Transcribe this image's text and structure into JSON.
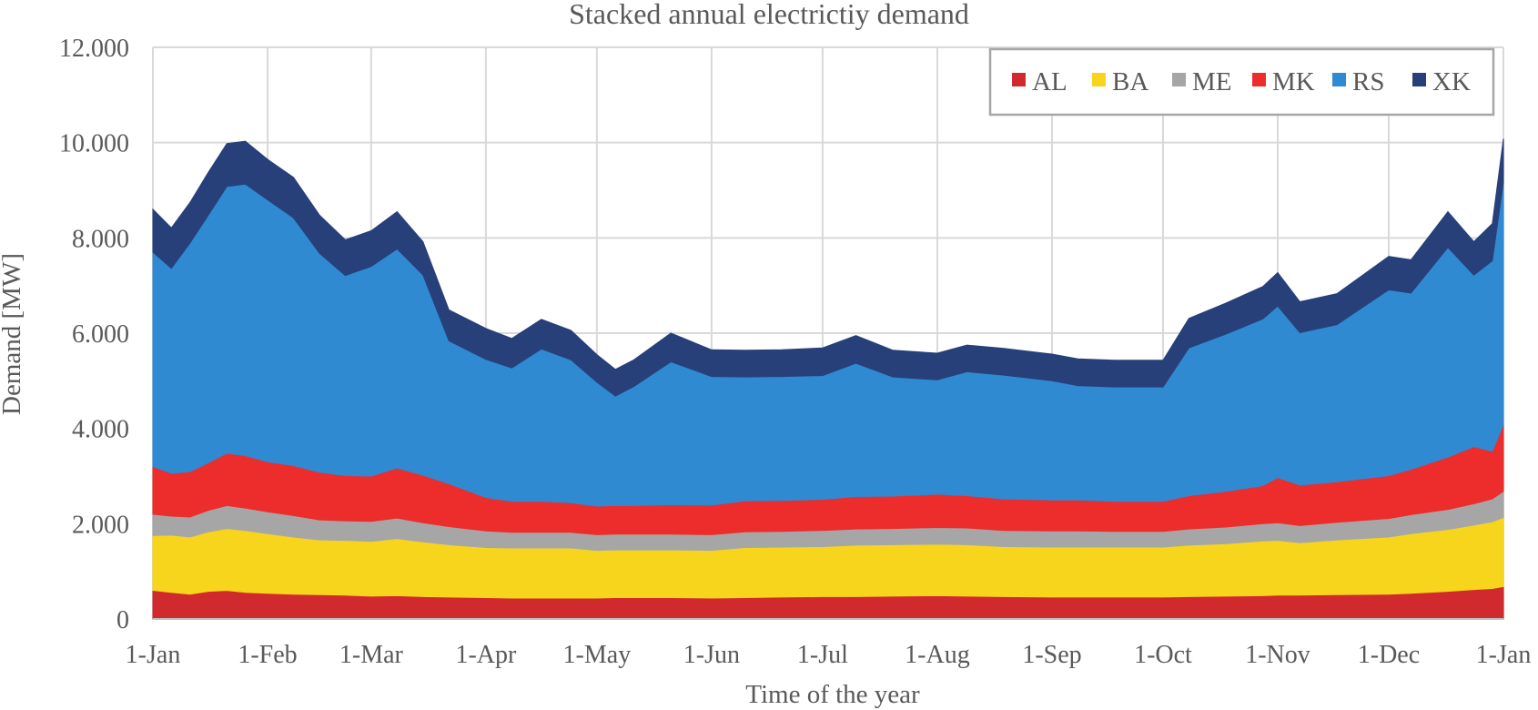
{
  "chart_data": {
    "type": "area",
    "stacked": true,
    "title": "Stacked annual electrictiy demand",
    "xlabel": "Time of the year",
    "ylabel": "Demand [MW]",
    "ylim": [
      0,
      12000
    ],
    "yticks": [
      "0",
      "2.000",
      "4.000",
      "6.000",
      "8.000",
      "10.000",
      "12.000"
    ],
    "xlim": [
      0,
      365
    ],
    "xticks": [
      {
        "label": "1-Jan",
        "day": 0
      },
      {
        "label": "1-Feb",
        "day": 31
      },
      {
        "label": "1-Mar",
        "day": 59
      },
      {
        "label": "1-Apr",
        "day": 90
      },
      {
        "label": "1-May",
        "day": 120
      },
      {
        "label": "1-Jun",
        "day": 151
      },
      {
        "label": "1-Jul",
        "day": 181
      },
      {
        "label": "1-Aug",
        "day": 212
      },
      {
        "label": "1-Sep",
        "day": 243
      },
      {
        "label": "1-Oct",
        "day": 273
      },
      {
        "label": "1-Nov",
        "day": 304
      },
      {
        "label": "1-Dec",
        "day": 334
      },
      {
        "label": "1-Jan",
        "day": 365
      }
    ],
    "grid": true,
    "legend_position": "top-right",
    "x": [
      0,
      5,
      10,
      15,
      20,
      25,
      31,
      38,
      45,
      52,
      59,
      66,
      73,
      80,
      90,
      97,
      105,
      113,
      120,
      125,
      130,
      140,
      151,
      160,
      170,
      181,
      190,
      200,
      212,
      220,
      230,
      243,
      250,
      260,
      273,
      280,
      290,
      300,
      304,
      310,
      320,
      334,
      340,
      350,
      357,
      362,
      365
    ],
    "series": [
      {
        "name": "AL",
        "color": "#d12a2e",
        "values": [
          600,
          560,
          520,
          580,
          600,
          560,
          540,
          520,
          510,
          500,
          480,
          490,
          470,
          460,
          450,
          440,
          440,
          440,
          440,
          450,
          450,
          450,
          440,
          450,
          460,
          470,
          470,
          480,
          490,
          480,
          470,
          460,
          460,
          460,
          460,
          470,
          480,
          490,
          500,
          500,
          510,
          520,
          540,
          580,
          620,
          640,
          680
        ]
      },
      {
        "name": "BA",
        "color": "#f7d51d",
        "values": [
          1150,
          1200,
          1200,
          1250,
          1300,
          1300,
          1250,
          1200,
          1150,
          1150,
          1150,
          1200,
          1150,
          1100,
          1050,
          1050,
          1050,
          1050,
          1000,
          1000,
          1000,
          1000,
          1000,
          1050,
          1050,
          1050,
          1080,
          1080,
          1080,
          1080,
          1050,
          1050,
          1050,
          1050,
          1050,
          1080,
          1100,
          1150,
          1150,
          1100,
          1150,
          1200,
          1250,
          1300,
          1350,
          1400,
          1450
        ]
      },
      {
        "name": "ME",
        "color": "#a6a6a6",
        "values": [
          450,
          400,
          420,
          450,
          480,
          470,
          460,
          450,
          420,
          410,
          420,
          430,
          400,
          380,
          350,
          330,
          330,
          330,
          330,
          330,
          330,
          330,
          330,
          330,
          330,
          340,
          340,
          340,
          350,
          350,
          340,
          340,
          340,
          330,
          330,
          340,
          350,
          360,
          370,
          360,
          370,
          390,
          400,
          420,
          450,
          480,
          550
        ]
      },
      {
        "name": "MK",
        "color": "#ed2c2c",
        "values": [
          1000,
          900,
          950,
          1000,
          1100,
          1100,
          1050,
          1050,
          1000,
          950,
          950,
          1050,
          1000,
          900,
          700,
          650,
          650,
          620,
          600,
          600,
          600,
          620,
          620,
          650,
          650,
          650,
          680,
          680,
          700,
          680,
          660,
          650,
          650,
          630,
          630,
          700,
          750,
          800,
          950,
          850,
          850,
          900,
          950,
          1100,
          1200,
          1000,
          1400
        ]
      },
      {
        "name": "RS",
        "color": "#2f8ad2",
        "values": [
          4500,
          4300,
          4800,
          5200,
          5600,
          5700,
          5500,
          5200,
          4600,
          4200,
          4400,
          4600,
          4200,
          3000,
          2900,
          2800,
          3200,
          3000,
          2600,
          2300,
          2500,
          3000,
          2700,
          2600,
          2600,
          2600,
          2800,
          2500,
          2400,
          2600,
          2600,
          2500,
          2400,
          2400,
          2400,
          3100,
          3300,
          3500,
          3600,
          3200,
          3300,
          3900,
          3700,
          4400,
          3600,
          4000,
          5100
        ]
      },
      {
        "name": "XK",
        "color": "#27407a",
        "values": [
          900,
          850,
          850,
          900,
          900,
          900,
          850,
          850,
          800,
          750,
          750,
          780,
          700,
          650,
          650,
          620,
          620,
          620,
          580,
          560,
          560,
          600,
          560,
          560,
          560,
          580,
          580,
          560,
          560,
          560,
          560,
          560,
          560,
          560,
          560,
          620,
          650,
          680,
          700,
          650,
          650,
          700,
          700,
          750,
          700,
          780,
          900
        ]
      }
    ]
  }
}
